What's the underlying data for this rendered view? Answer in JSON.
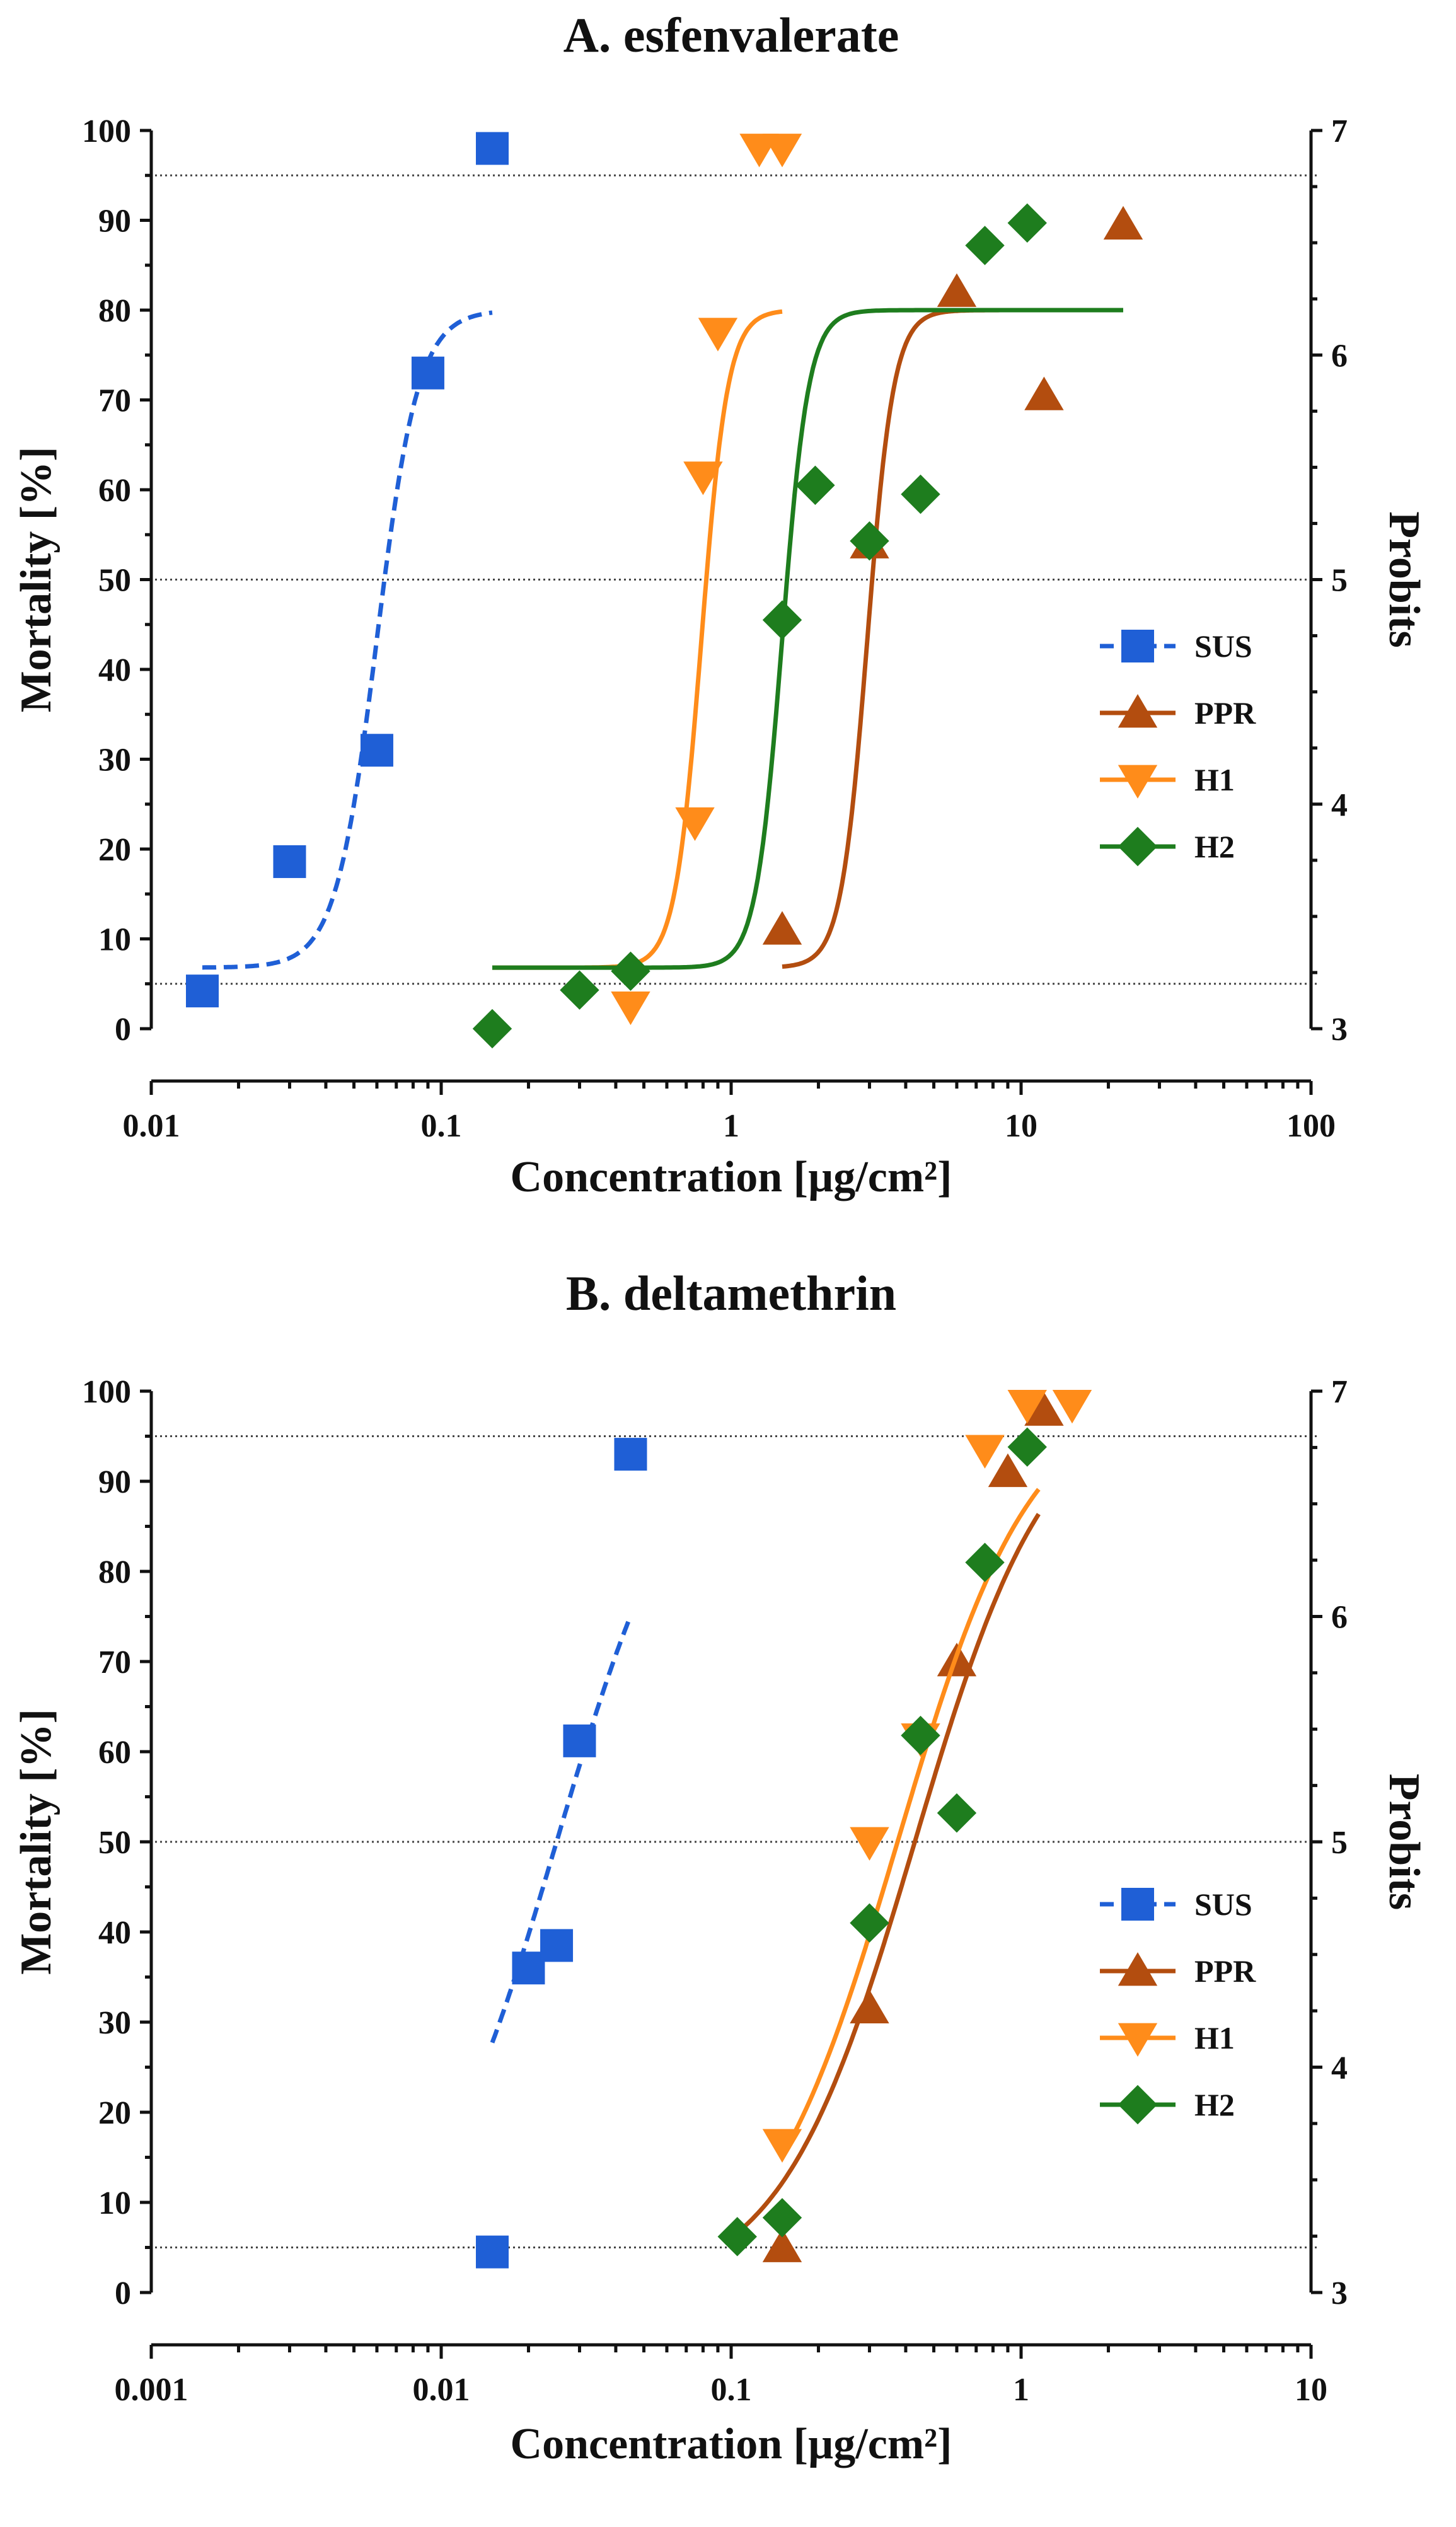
{
  "figure": {
    "colors": {
      "SUS": "#1f5fd6",
      "PPR": "#b34d0f",
      "H1": "#ff8c1a",
      "H2": "#1e7d1e",
      "axis": "#111111",
      "ref": "#444444"
    }
  },
  "chart_data": [
    {
      "type": "scatter",
      "title": "A. esfenvalerate",
      "xlabel": "Concentration [µg/cm²]",
      "ylabel": "Mortality [%]",
      "y2label": "Probits",
      "xscale": "log",
      "xlim": [
        0.01,
        100
      ],
      "ylim": [
        0,
        100
      ],
      "xticks": [
        0.01,
        0.1,
        1,
        10,
        100
      ],
      "xtick_labels": [
        "0.01",
        "0.1",
        "1",
        "10",
        "100"
      ],
      "yticks": [
        0,
        10,
        20,
        30,
        40,
        50,
        60,
        70,
        80,
        90,
        100
      ],
      "ytick_labels": [
        "0",
        "10",
        "20",
        "30",
        "40",
        "50",
        "60",
        "70",
        "80",
        "90",
        "100"
      ],
      "y2ticks": [
        3,
        4,
        5,
        6,
        7
      ],
      "y2tick_labels": [
        "3",
        "4",
        "5",
        "6",
        "7"
      ],
      "reference_lines_percent": [
        5,
        50,
        95
      ],
      "legend_position": "right",
      "series": [
        {
          "name": "SUS",
          "marker": "square",
          "line": "dashed",
          "x": [
            0.015,
            0.03,
            0.06,
            0.09,
            0.15
          ],
          "y": [
            4.2,
            18.6,
            31,
            73,
            98
          ],
          "fit": {
            "type": "sigmoid",
            "x0": 0.06,
            "slope": 14,
            "lower": 6.8,
            "upper": 80,
            "xmin": 0.015,
            "xmax": 0.15
          }
        },
        {
          "name": "PPR",
          "marker": "triangle-up",
          "line": "solid",
          "x": [
            1.5,
            3,
            6,
            12,
            22.5
          ],
          "y": [
            11,
            54,
            82,
            70.5,
            89.5
          ],
          "fit": {
            "type": "sigmoid",
            "x0": 2.95,
            "slope": 22,
            "lower": 6.8,
            "upper": 80,
            "xmin": 1.5,
            "xmax": 22.5
          }
        },
        {
          "name": "H1",
          "marker": "triangle-down",
          "line": "solid",
          "x": [
            0.45,
            0.75,
            0.8,
            0.9,
            1.25,
            1.5
          ],
          "y": [
            2.5,
            23,
            61.5,
            77.5,
            98,
            98
          ],
          "fit": {
            "type": "sigmoid",
            "x0": 0.79,
            "slope": 22,
            "lower": 6.8,
            "upper": 80,
            "xmin": 0.15,
            "xmax": 1.5
          }
        },
        {
          "name": "H2",
          "marker": "diamond",
          "line": "solid",
          "x": [
            0.15,
            0.3,
            0.45,
            1.5,
            1.95,
            3,
            4.5,
            7.5,
            10.5
          ],
          "y": [
            0,
            4.3,
            6.4,
            45.5,
            60.5,
            54.3,
            59.5,
            87.2,
            89.7
          ],
          "fit": {
            "type": "sigmoid",
            "x0": 1.5,
            "slope": 22,
            "lower": 6.8,
            "upper": 80,
            "xmin": 0.15,
            "xmax": 22.5
          }
        }
      ]
    },
    {
      "type": "scatter",
      "title": "B. deltamethrin",
      "xlabel": "Concentration [µg/cm²]",
      "ylabel": "Mortality [%]",
      "y2label": "Probits",
      "xscale": "log",
      "xlim": [
        0.001,
        10
      ],
      "ylim": [
        0,
        100
      ],
      "xticks": [
        0.001,
        0.01,
        0.1,
        1,
        10
      ],
      "xtick_labels": [
        "0.001",
        "0.01",
        "0.1",
        "1",
        "10"
      ],
      "yticks": [
        0,
        10,
        20,
        30,
        40,
        50,
        60,
        70,
        80,
        90,
        100
      ],
      "ytick_labels": [
        "0",
        "10",
        "20",
        "30",
        "40",
        "50",
        "60",
        "70",
        "80",
        "90",
        "100"
      ],
      "y2ticks": [
        3,
        4,
        5,
        6,
        7
      ],
      "y2tick_labels": [
        "3",
        "4",
        "5",
        "6",
        "7"
      ],
      "reference_lines_percent": [
        5,
        50,
        95
      ],
      "legend_position": "right",
      "series": [
        {
          "name": "SUS",
          "marker": "square",
          "line": "dashed",
          "x": [
            0.015,
            0.02,
            0.025,
            0.03,
            0.045
          ],
          "y": [
            4.5,
            36,
            38.5,
            61.2,
            93
          ],
          "fit": {
            "type": "logit-line",
            "x0": 0.025,
            "slope": 4.32,
            "xmin": 0.015,
            "xmax": 0.045
          }
        },
        {
          "name": "PPR",
          "marker": "triangle-up",
          "line": "solid",
          "x": [
            0.15,
            0.3,
            0.6,
            0.9,
            1.2
          ],
          "y": [
            5,
            31.5,
            70,
            91,
            97.8
          ],
          "fit": {
            "type": "logistic",
            "x0": 0.43,
            "slope": 4.32,
            "xmin": 0.105,
            "xmax": 1.15
          }
        },
        {
          "name": "H1",
          "marker": "triangle-down",
          "line": "solid",
          "x": [
            0.15,
            0.3,
            0.45,
            0.75,
            1.05,
            1.5
          ],
          "y": [
            16.5,
            50,
            61.5,
            93.5,
            98.5,
            98.5
          ],
          "fit": {
            "type": "logistic",
            "x0": 0.375,
            "slope": 4.32,
            "xmin": 0.15,
            "xmax": 1.15
          }
        },
        {
          "name": "H2",
          "marker": "diamond",
          "line": "solid",
          "x": [
            0.105,
            0.15,
            0.3,
            0.45,
            0.6,
            0.75,
            1.05
          ],
          "y": [
            6.2,
            8.3,
            41,
            61.8,
            53.2,
            81,
            93.8
          ],
          "fit": null
        }
      ]
    }
  ]
}
